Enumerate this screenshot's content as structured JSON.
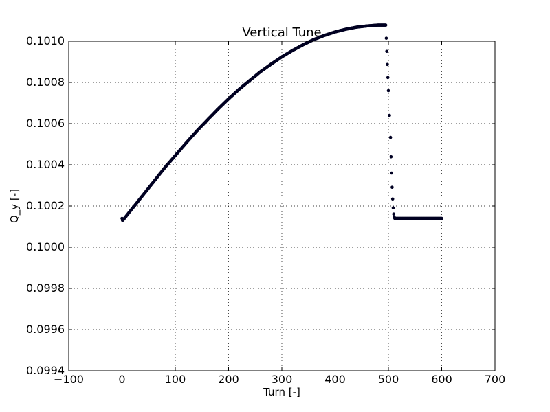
{
  "chart_data": {
    "type": "scatter",
    "title": "Vertical Tune",
    "xlabel": "Turn [-]",
    "ylabel": "Q_y [-]",
    "xlim": [
      -100,
      700
    ],
    "ylim": [
      0.0994,
      0.101
    ],
    "xticks": [
      -100,
      0,
      100,
      200,
      300,
      400,
      500,
      600,
      700
    ],
    "xtick_labels": [
      "−100",
      "0",
      "100",
      "200",
      "300",
      "400",
      "500",
      "600",
      "700"
    ],
    "yticks": [
      0.0994,
      0.0996,
      0.0998,
      0.1,
      0.1002,
      0.1004,
      0.1006,
      0.1008,
      0.101
    ],
    "ytick_labels": [
      "0.0994",
      "0.0996",
      "0.0998",
      "0.1000",
      "0.1002",
      "0.1004",
      "0.1006",
      "0.1008",
      "0.1010"
    ],
    "grid": true,
    "marker_color": "#000022",
    "series": [
      {
        "points": [
          [
            0,
            0.10014
          ],
          [
            1,
            0.10013
          ],
          [
            2,
            0.100132
          ],
          [
            20,
            0.10019
          ],
          [
            40,
            0.100255
          ],
          [
            60,
            0.10032
          ],
          [
            80,
            0.100385
          ],
          [
            100,
            0.100445
          ],
          [
            120,
            0.100505
          ],
          [
            140,
            0.100563
          ],
          [
            160,
            0.100617
          ],
          [
            180,
            0.10067
          ],
          [
            200,
            0.10072
          ],
          [
            220,
            0.100767
          ],
          [
            240,
            0.10081
          ],
          [
            260,
            0.100852
          ],
          [
            280,
            0.100889
          ],
          [
            300,
            0.100924
          ],
          [
            320,
            0.100955
          ],
          [
            340,
            0.100983
          ],
          [
            360,
            0.101008
          ],
          [
            380,
            0.101028
          ],
          [
            400,
            0.101045
          ],
          [
            420,
            0.101058
          ],
          [
            440,
            0.101068
          ],
          [
            460,
            0.101074
          ],
          [
            480,
            0.101078
          ],
          [
            495,
            0.101078
          ],
          [
            500,
            0.10076
          ],
          [
            502,
            0.10064
          ],
          [
            504,
            0.100533
          ],
          [
            505,
            0.100439
          ],
          [
            506,
            0.10036
          ],
          [
            507,
            0.100291
          ],
          [
            508,
            0.100234
          ],
          [
            509,
            0.100191
          ],
          [
            510,
            0.100161
          ],
          [
            511,
            0.100145
          ],
          [
            512,
            0.10014
          ],
          [
            540,
            0.10014
          ],
          [
            570,
            0.10014
          ],
          [
            600,
            0.10014
          ]
        ]
      }
    ]
  }
}
